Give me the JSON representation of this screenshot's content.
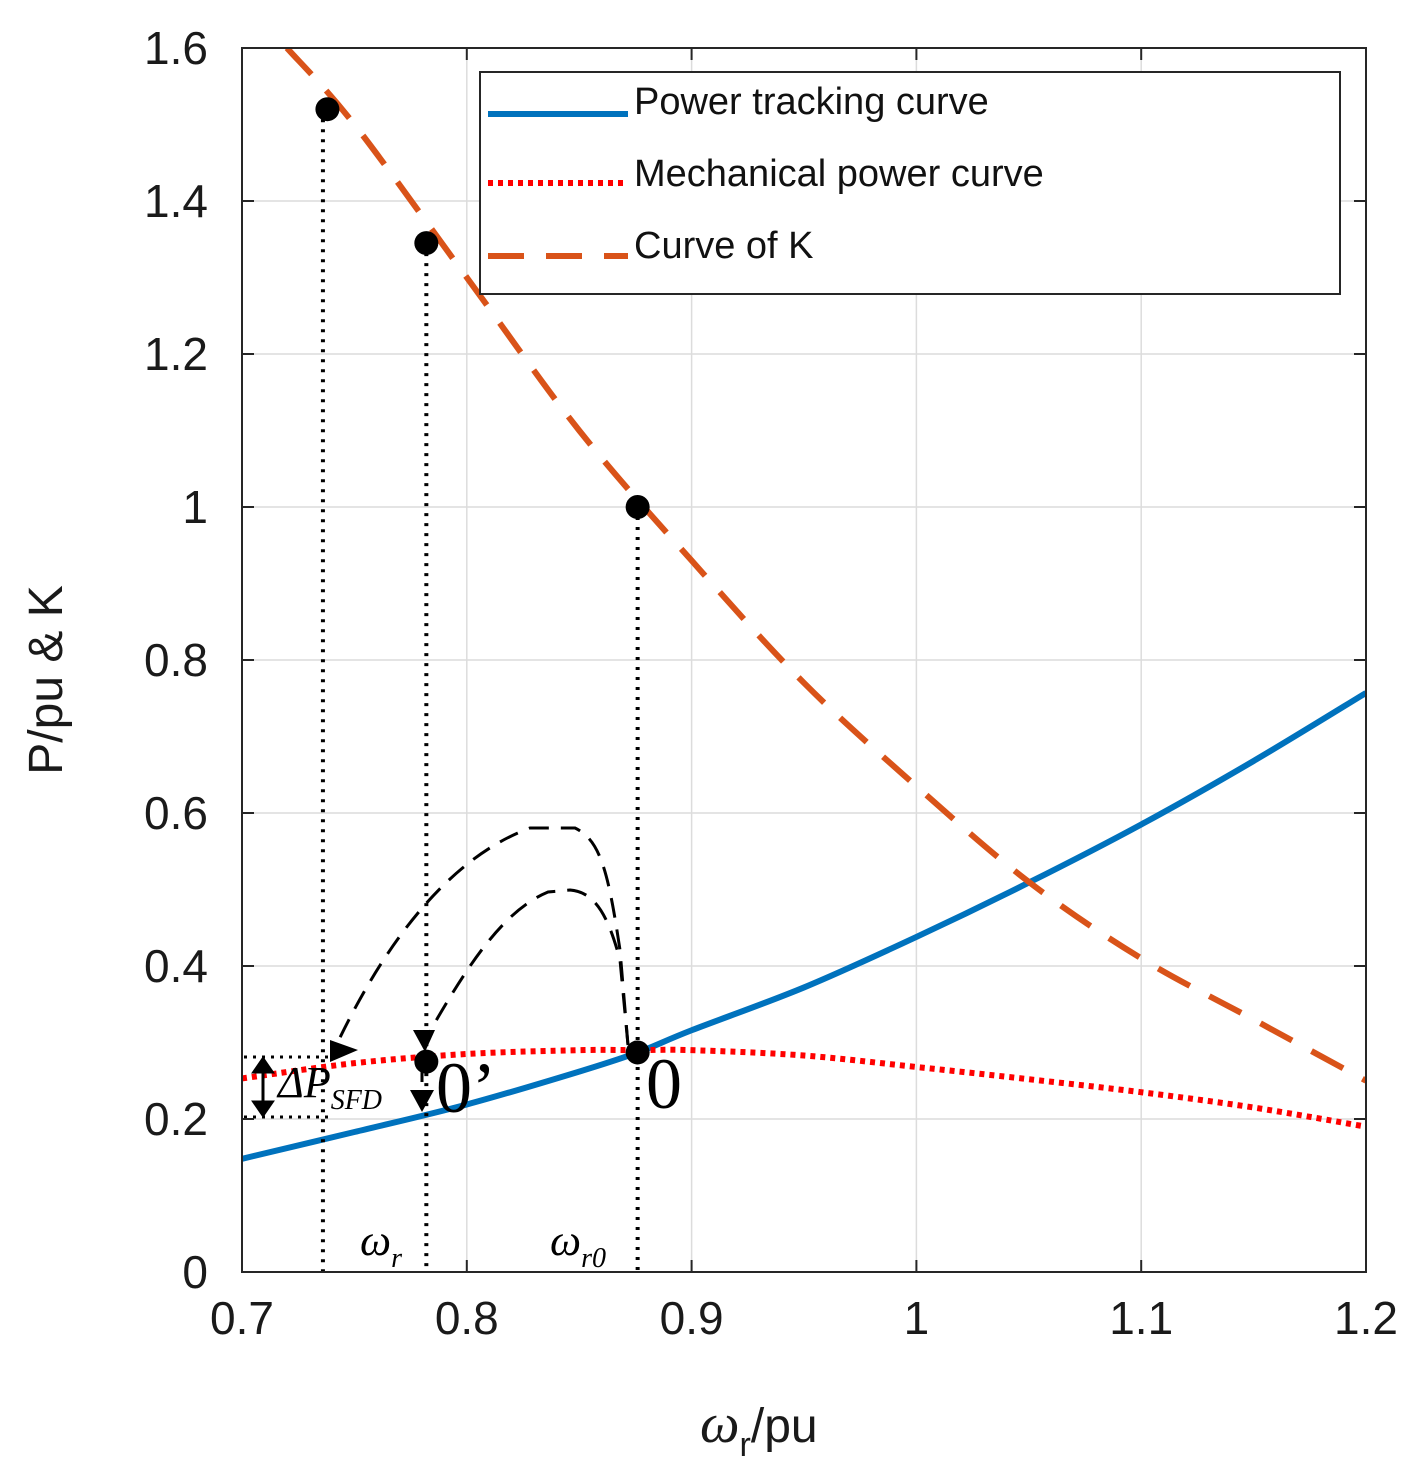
{
  "chart_data": {
    "type": "line",
    "title": "",
    "xlabel": "ω",
    "xlabel_sub": "r",
    "xlabel_suffix": "/pu",
    "ylabel": "P/pu & K",
    "xlim": [
      0.7,
      1.2
    ],
    "ylim": [
      0,
      1.6
    ],
    "xticks": [
      0.7,
      0.8,
      0.9,
      1,
      1.1,
      1.2
    ],
    "xtick_labels": [
      "0.7",
      "0.8",
      "0.9",
      "1",
      "1.1",
      "1.2"
    ],
    "yticks": [
      0,
      0.2,
      0.4,
      0.6,
      0.8,
      1,
      1.2,
      1.4,
      1.6
    ],
    "ytick_labels": [
      "0",
      "0.2",
      "0.4",
      "0.6",
      "0.8",
      "1",
      "1.2",
      "1.4",
      "1.6"
    ],
    "grid": true,
    "legend_position": "top-right",
    "series": [
      {
        "name": "Power tracking curve",
        "style": "solid",
        "color": "#0072BD",
        "x": [
          0.7,
          0.75,
          0.8,
          0.85,
          0.876,
          0.9,
          0.95,
          1.0,
          1.05,
          1.1,
          1.15,
          1.2
        ],
        "y": [
          0.148,
          0.183,
          0.219,
          0.262,
          0.287,
          0.316,
          0.372,
          0.438,
          0.509,
          0.585,
          0.668,
          0.757
        ]
      },
      {
        "name": "Mechanical power curve",
        "style": "dotted",
        "color": "#FF0000",
        "x": [
          0.7,
          0.75,
          0.8,
          0.85,
          0.876,
          0.9,
          0.95,
          1.0,
          1.05,
          1.1,
          1.15,
          1.2
        ],
        "y": [
          0.253,
          0.273,
          0.285,
          0.29,
          0.29,
          0.29,
          0.283,
          0.268,
          0.252,
          0.235,
          0.215,
          0.19
        ]
      },
      {
        "name": "Curve of K",
        "style": "dashed",
        "color": "#D95319",
        "x": [
          0.72,
          0.75,
          0.8,
          0.85,
          0.9,
          0.95,
          1.0,
          1.05,
          1.1,
          1.15,
          1.2
        ],
        "y": [
          1.6,
          1.5,
          1.3,
          1.1,
          0.93,
          0.77,
          0.635,
          0.51,
          0.41,
          0.33,
          0.25
        ]
      }
    ],
    "marker_points": [
      {
        "x": 0.738,
        "y": 1.52
      },
      {
        "x": 0.782,
        "y": 1.345
      },
      {
        "x": 0.876,
        "y": 1.0
      },
      {
        "x": 0.782,
        "y": 0.275
      },
      {
        "x": 0.876,
        "y": 0.287
      }
    ],
    "guide_lines_x": [
      0.736,
      0.782,
      0.876
    ],
    "annotations": {
      "point_o": "0",
      "point_o_prime": "0’",
      "omega_r": "ω",
      "omega_r_sub": "r",
      "omega_r0": "ω",
      "omega_r0_sub": "r0",
      "delta_p": "ΔP",
      "delta_p_sub": "SFD"
    }
  }
}
